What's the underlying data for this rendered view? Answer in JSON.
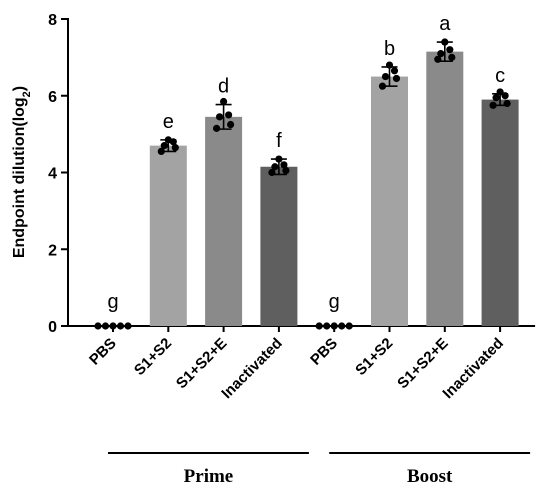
{
  "chart_data": {
    "type": "bar",
    "ylabel": "Endpoint dilution(log",
    "ylabel_sub": "2",
    "ylabel_close": ")",
    "ylim": [
      0,
      8
    ],
    "yticks": [
      0,
      2,
      4,
      6,
      8
    ],
    "yticks_labels": [
      "0",
      "2",
      "4",
      "6",
      "8"
    ],
    "groups": [
      "Prime",
      "Boost"
    ],
    "categories": [
      "PBS",
      "S1+S2",
      "S1+S2+E",
      "Inactivated",
      "PBS",
      "S1+S2",
      "S1+S2+E",
      "Inactivated"
    ],
    "group_of_category": [
      0,
      0,
      0,
      0,
      1,
      1,
      1,
      1
    ],
    "values": [
      0,
      4.7,
      5.45,
      4.15,
      0,
      6.5,
      7.15,
      5.9
    ],
    "errors": [
      0,
      0.15,
      0.32,
      0.2,
      0,
      0.25,
      0.25,
      0.15
    ],
    "significance": [
      "g",
      "e",
      "d",
      "f",
      "g",
      "b",
      "a",
      "c"
    ],
    "points": [
      [
        0,
        0,
        0,
        0,
        0
      ],
      [
        4.55,
        4.65,
        4.7,
        4.8,
        4.85
      ],
      [
        5.15,
        5.25,
        5.45,
        5.5,
        5.85
      ],
      [
        4.0,
        4.05,
        4.15,
        4.2,
        4.35
      ],
      [
        0,
        0,
        0,
        0,
        0
      ],
      [
        6.25,
        6.45,
        6.5,
        6.65,
        6.8
      ],
      [
        6.95,
        7.0,
        7.1,
        7.2,
        7.4
      ],
      [
        5.75,
        5.8,
        5.95,
        6.0,
        6.1
      ]
    ],
    "bar_colors": [
      "#bdbdbd",
      "#a3a3a3",
      "#8a8a8a",
      "#5f5f5f",
      "#bdbdbd",
      "#a3a3a3",
      "#8a8a8a",
      "#5f5f5f"
    ],
    "grid": false,
    "legend": "none"
  }
}
